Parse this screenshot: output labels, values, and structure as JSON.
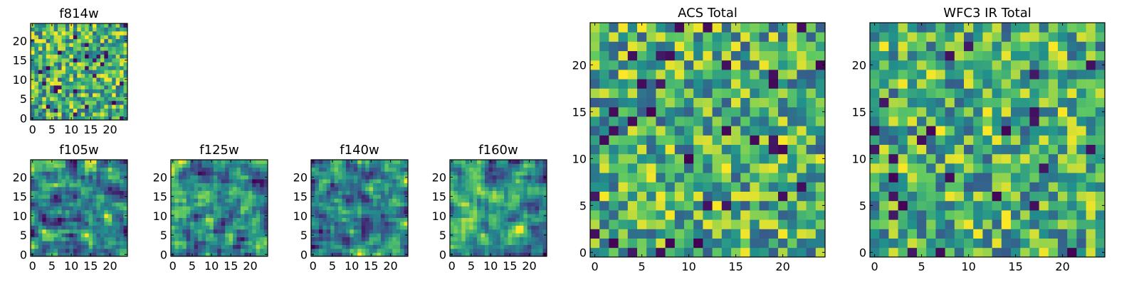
{
  "figure": {
    "description_free": true,
    "colormap": [
      "#440154",
      "#3b528b",
      "#21918c",
      "#5ec962",
      "#fde725"
    ]
  },
  "chart_data": [
    {
      "id": "f814w",
      "type": "heatmap",
      "title": "f814w",
      "grid_size": [
        25,
        25
      ],
      "xlim": [
        -0.5,
        24.5
      ],
      "ylim": [
        -0.5,
        24.5
      ],
      "xticks": [
        0,
        5,
        10,
        15,
        20
      ],
      "yticks": [
        0,
        5,
        10,
        15,
        20
      ],
      "value_range": [
        0,
        1
      ],
      "pattern": "uniform noise",
      "seed": 11
    },
    {
      "id": "f105w",
      "type": "heatmap",
      "title": "f105w",
      "grid_size": [
        25,
        25
      ],
      "xlim": [
        -0.5,
        24.5
      ],
      "ylim": [
        -0.5,
        24.5
      ],
      "xticks": [
        0,
        5,
        10,
        15,
        20
      ],
      "yticks": [
        0,
        5,
        10,
        15,
        20
      ],
      "value_range": [
        0,
        1
      ],
      "pattern": "smoothed noise",
      "seed": 23
    },
    {
      "id": "f125w",
      "type": "heatmap",
      "title": "f125w",
      "grid_size": [
        25,
        25
      ],
      "xlim": [
        -0.5,
        24.5
      ],
      "ylim": [
        -0.5,
        24.5
      ],
      "xticks": [
        0,
        5,
        10,
        15,
        20
      ],
      "yticks": [
        0,
        5,
        10,
        15,
        20
      ],
      "value_range": [
        0,
        1
      ],
      "pattern": "smoothed noise",
      "seed": 37
    },
    {
      "id": "f140w",
      "type": "heatmap",
      "title": "f140w",
      "grid_size": [
        25,
        25
      ],
      "xlim": [
        -0.5,
        24.5
      ],
      "ylim": [
        -0.5,
        24.5
      ],
      "xticks": [
        0,
        5,
        10,
        15,
        20
      ],
      "yticks": [
        0,
        5,
        10,
        15,
        20
      ],
      "value_range": [
        0,
        1
      ],
      "pattern": "smoothed noise",
      "seed": 41
    },
    {
      "id": "f160w",
      "type": "heatmap",
      "title": "f160w",
      "grid_size": [
        25,
        25
      ],
      "xlim": [
        -0.5,
        24.5
      ],
      "ylim": [
        -0.5,
        24.5
      ],
      "xticks": [
        0,
        5,
        10,
        15,
        20
      ],
      "yticks": [
        0,
        5,
        10,
        15,
        20
      ],
      "value_range": [
        0,
        1
      ],
      "pattern": "smoothed noise",
      "seed": 53
    },
    {
      "id": "acs-total",
      "type": "heatmap",
      "title": "ACS Total",
      "grid_size": [
        25,
        25
      ],
      "xlim": [
        -0.5,
        24.5
      ],
      "ylim": [
        -0.5,
        24.5
      ],
      "xticks": [
        0,
        5,
        10,
        15,
        20
      ],
      "yticks": [
        0,
        5,
        10,
        15,
        20
      ],
      "value_range": [
        0,
        1
      ],
      "pattern": "uniform noise",
      "seed": 67
    },
    {
      "id": "wfc3-ir-total",
      "type": "heatmap",
      "title": "WFC3 IR Total",
      "grid_size": [
        25,
        25
      ],
      "xlim": [
        -0.5,
        24.5
      ],
      "ylim": [
        -0.5,
        24.5
      ],
      "xticks": [
        0,
        5,
        10,
        15,
        20
      ],
      "yticks": [
        0,
        5,
        10,
        15,
        20
      ],
      "value_range": [
        0,
        1
      ],
      "pattern": "uniform noise",
      "seed": 79
    }
  ]
}
